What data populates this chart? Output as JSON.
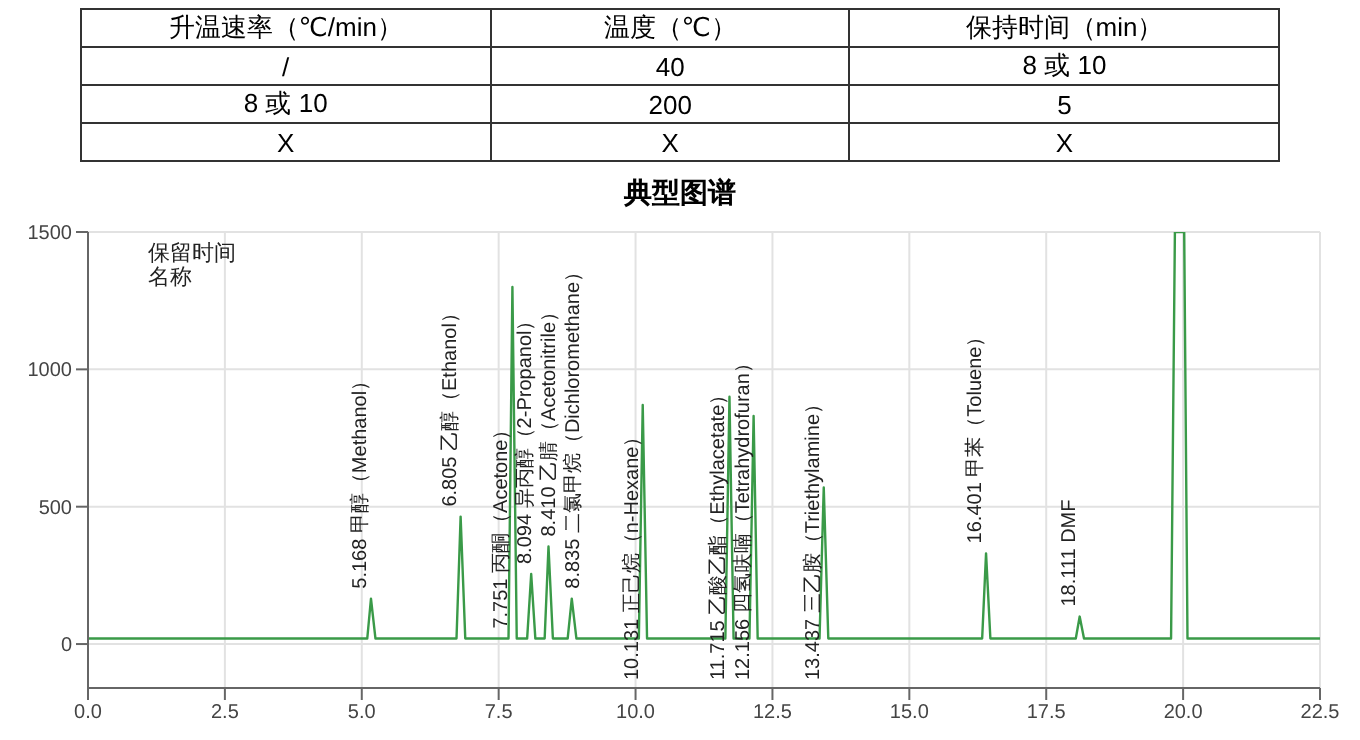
{
  "chart_data": [
    {
      "type": "other",
      "annotations": [
        "升温速率（℃/min）",
        "温度（℃）",
        "保持时间（min）",
        "/",
        "40",
        "8 或 10",
        "8 或 10",
        "200",
        "5",
        "X",
        "X",
        "X"
      ]
    },
    {
      "type": "line",
      "title": "典型图谱",
      "grid": true,
      "marker": "none",
      "x": [
        0,
        5.1,
        5.168,
        5.25,
        6.73,
        6.805,
        6.89,
        7.68,
        7.751,
        7.83,
        8.02,
        8.094,
        8.17,
        8.34,
        8.41,
        8.49,
        8.76,
        8.835,
        8.92,
        10.06,
        10.131,
        10.21,
        11.64,
        11.715,
        11.79,
        12.08,
        12.156,
        12.23,
        13.36,
        13.437,
        13.52,
        16.33,
        16.401,
        16.48,
        18.04,
        18.111,
        18.19,
        19.78,
        19.85,
        20.02,
        20.08,
        22.5
      ],
      "series": [
        {
          "color": "#3a9a48",
          "values": [
            20,
            20,
            165,
            20,
            20,
            464,
            20,
            20,
            1300,
            20,
            20,
            255,
            20,
            20,
            355,
            20,
            20,
            165,
            20,
            20,
            870,
            20,
            20,
            900,
            20,
            20,
            830,
            20,
            20,
            570,
            20,
            20,
            330,
            20,
            20,
            100,
            20,
            20,
            1500,
            1500,
            20,
            20
          ]
        }
      ],
      "xlim": [
        0,
        22.5
      ],
      "xticks": [
        {
          "value": 0,
          "label": "0.0"
        },
        {
          "value": 2.5,
          "label": "2.5"
        },
        {
          "value": 5,
          "label": "5.0"
        },
        {
          "value": 7.5,
          "label": "7.5"
        },
        {
          "value": 10,
          "label": "10.0"
        },
        {
          "value": 12.5,
          "label": "12.5"
        },
        {
          "value": 15,
          "label": "15.0"
        },
        {
          "value": 17.5,
          "label": "17.5"
        },
        {
          "value": 20,
          "label": "20.0"
        },
        {
          "value": 22.5,
          "label": "22.5"
        }
      ],
      "ylim": [
        -160,
        1500
      ],
      "yticks": [
        0,
        500,
        1000,
        1500
      ],
      "annotations": [
        "保留时间",
        "名称",
        {
          "text": "5.168 甲醇（Methanol）",
          "x": 5.168,
          "y": 165
        },
        {
          "text": "6.805 乙醇（Ethanol）",
          "x": 6.805,
          "y": 464
        },
        {
          "text": "7.751 丙酮（Acetone）",
          "x": 7.751,
          "y": 20
        },
        {
          "text": "8.094 异丙醇（2-Propanol）",
          "x": 8.094,
          "y": 255
        },
        {
          "text": "8.410 乙腈（Acetonitrile）",
          "x": 8.41,
          "y": 355
        },
        {
          "text": "8.835 二氯甲烷（Dichloromethane）",
          "x": 8.835,
          "y": 165
        },
        {
          "text": "10.131 正己烷（n-Hexane）",
          "x": 10.131,
          "y": 870
        },
        {
          "text": "11.715 乙酸乙酯（Ethylacetate）",
          "x": 11.715,
          "y": 900
        },
        {
          "text": "12.156 四氢呋喃（Tetrahydrofuran）",
          "x": 12.156,
          "y": 830
        },
        {
          "text": "13.437 三乙胺（Triethylamine）",
          "x": 13.437,
          "y": 570
        },
        {
          "text": "16.401 甲苯（Toluene）",
          "x": 16.401,
          "y": 330
        },
        {
          "text": "18.111 DMF",
          "x": 18.111,
          "y": 100
        }
      ]
    }
  ]
}
